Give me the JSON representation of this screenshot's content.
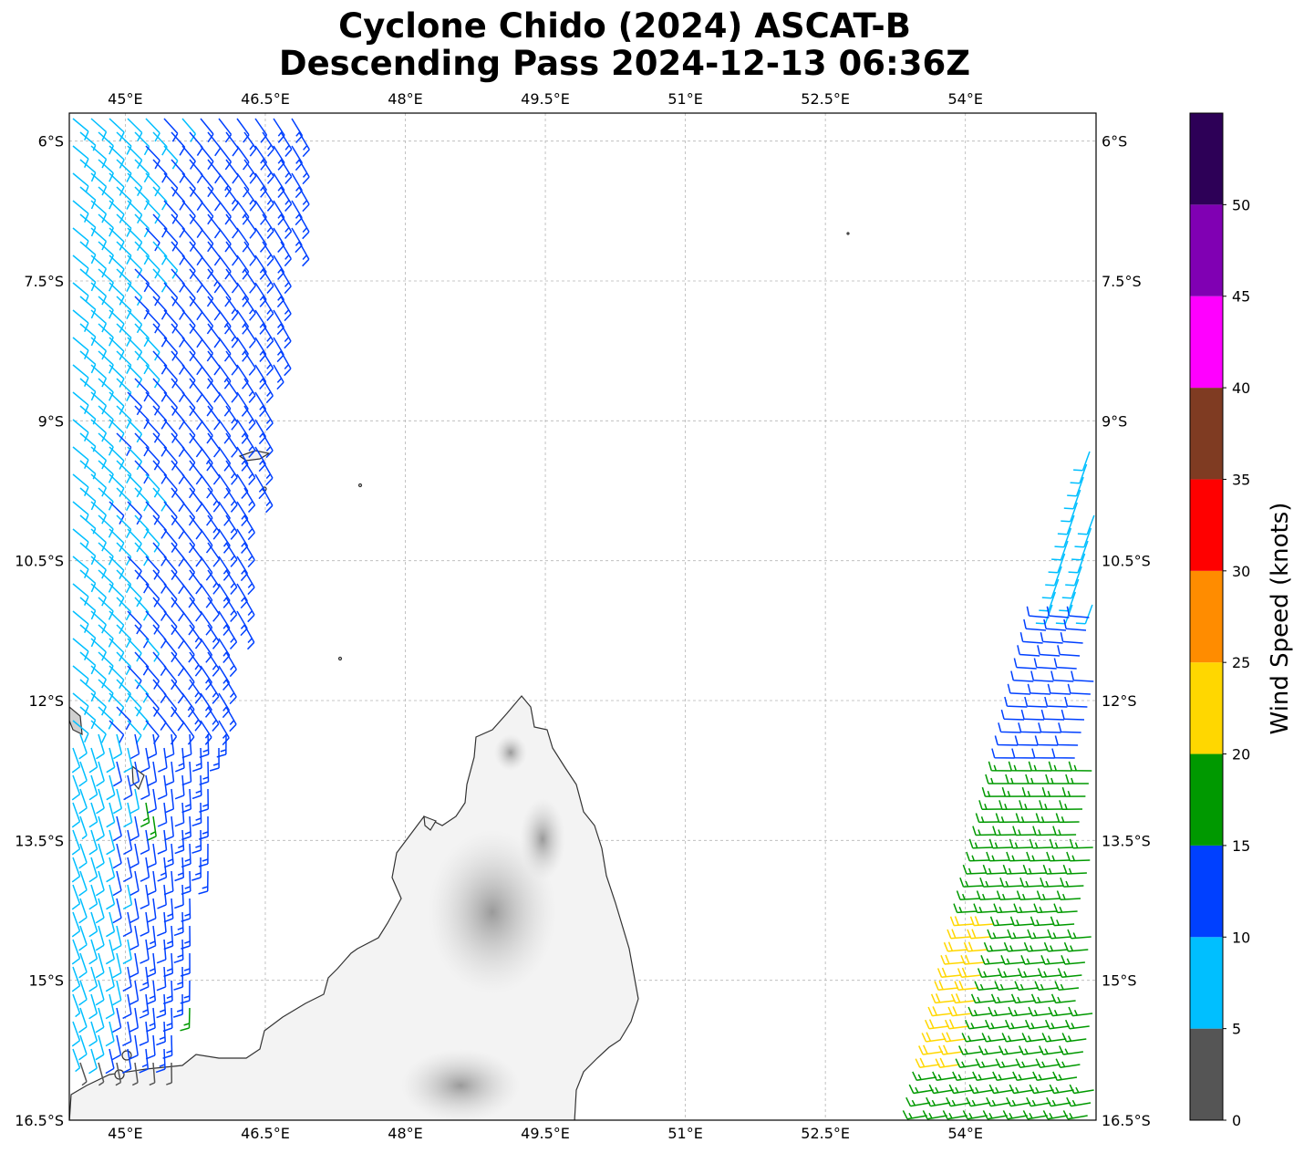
{
  "title": {
    "line1": "Cyclone Chido (2024) ASCAT-B",
    "line2": "Descending Pass 2024-12-13 06:36Z"
  },
  "axes": {
    "lon_ticks": [
      "45°E",
      "46.5°E",
      "48°E",
      "49.5°E",
      "51°E",
      "52.5°E",
      "54°E"
    ],
    "lat_ticks": [
      "6°S",
      "7.5°S",
      "9°S",
      "10.5°S",
      "12°S",
      "13.5°S",
      "15°S",
      "16.5°S"
    ]
  },
  "colorbar": {
    "label": "Wind Speed (knots)",
    "ticks": [
      "0",
      "5",
      "10",
      "15",
      "20",
      "25",
      "30",
      "35",
      "40",
      "45",
      "50"
    ],
    "colors": [
      "#555555",
      "#00bfff",
      "#0040ff",
      "#009900",
      "#ffd700",
      "#ff8c00",
      "#ff0000",
      "#7f3b22",
      "#ff00ff",
      "#8000b3",
      "#2d0057"
    ]
  },
  "chart_data": {
    "type": "map",
    "lon_range": [
      44.4,
      55.4
    ],
    "lat_range": [
      -16.5,
      -5.7
    ],
    "grid": true,
    "speed_bins_knots": [
      0,
      5,
      10,
      15,
      20,
      25,
      30,
      35,
      40,
      45,
      50,
      55
    ],
    "swaths": [
      {
        "side": "west",
        "lon_min": 44.4,
        "lat_extent": [
          -16.3,
          -5.7
        ],
        "wind_speed_bins_present": [
          "0-5",
          "5-10",
          "10-15",
          "15-20"
        ],
        "prevailing_direction": "easterly to southeasterly"
      },
      {
        "side": "east",
        "lon_max": 55.4,
        "lat_extent": [
          -16.5,
          -9.3
        ],
        "wind_speed_bins_present": [
          "5-10",
          "10-15",
          "15-20",
          "20-25"
        ],
        "prevailing_direction": "easterly to southeasterly",
        "max_bin": "20-25"
      }
    ],
    "land": [
      "northern Madagascar (terrain shaded)",
      "Comoros",
      "Aldabra group"
    ]
  }
}
